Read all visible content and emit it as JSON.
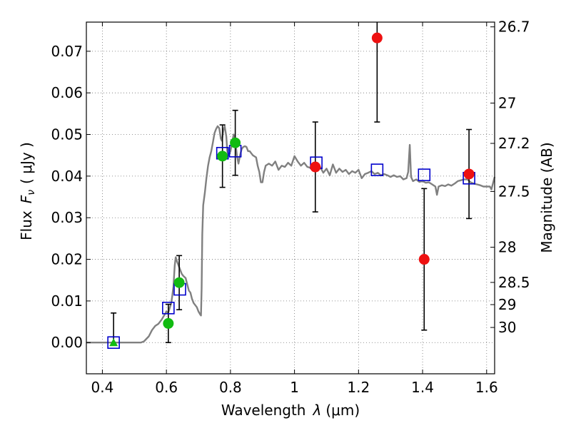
{
  "chart_data": {
    "type": "scatter",
    "title": "",
    "xlabel_main": "Wavelength",
    "xlabel_symbol": "λ",
    "xlabel_unit": "(μm)",
    "ylabel_main": "Flux",
    "ylabel_symbol": "F",
    "ylabel_subscript": "ν",
    "ylabel_unit": "( μJy )",
    "y2label": "Magnitude (AB)",
    "xlim": [
      0.35,
      1.625
    ],
    "ylim": [
      -0.0075,
      0.077
    ],
    "grid": true,
    "x_ticks": [
      0.4,
      0.6,
      0.8,
      1.0,
      1.2,
      1.4,
      1.6
    ],
    "x_tick_labels": [
      "0.4",
      "0.6",
      "0.8",
      "1",
      "1.2",
      "1.4",
      "1.6"
    ],
    "y_ticks": [
      0.0,
      0.01,
      0.02,
      0.03,
      0.04,
      0.05,
      0.06,
      0.07
    ],
    "y_tick_labels": [
      "0.00",
      "0.01",
      "0.02",
      "0.03",
      "0.04",
      "0.05",
      "0.06",
      "0.07"
    ],
    "mag_ticks": [
      26.7,
      27,
      27.2,
      27.5,
      28,
      28.5,
      29,
      30
    ],
    "mag_tick_labels": [
      "26.7",
      "27",
      "27.2",
      "27.5",
      "28",
      "28.5",
      "29",
      "30"
    ],
    "colors": {
      "model": "#808080",
      "red_points": "#ee1111",
      "green_points": "#11bb11",
      "model_boxes": "#0000cc",
      "errorbar": "#000000"
    },
    "series": [
      {
        "kind": "line",
        "points": [
          [
            0.35,
            0.0
          ],
          [
            0.52,
            0.0
          ],
          [
            0.53,
            0.0003
          ],
          [
            0.545,
            0.0015
          ],
          [
            0.555,
            0.003
          ],
          [
            0.565,
            0.004
          ],
          [
            0.575,
            0.0045
          ],
          [
            0.585,
            0.0055
          ],
          [
            0.595,
            0.0068
          ],
          [
            0.6,
            0.0075
          ],
          [
            0.605,
            0.007
          ],
          [
            0.61,
            0.0082
          ],
          [
            0.615,
            0.0095
          ],
          [
            0.618,
            0.011
          ],
          [
            0.622,
            0.0135
          ],
          [
            0.626,
            0.0185
          ],
          [
            0.629,
            0.0205
          ],
          [
            0.633,
            0.0195
          ],
          [
            0.638,
            0.0185
          ],
          [
            0.643,
            0.0175
          ],
          [
            0.648,
            0.0165
          ],
          [
            0.653,
            0.016
          ],
          [
            0.66,
            0.0155
          ],
          [
            0.665,
            0.014
          ],
          [
            0.67,
            0.0125
          ],
          [
            0.675,
            0.012
          ],
          [
            0.68,
            0.0105
          ],
          [
            0.685,
            0.0095
          ],
          [
            0.69,
            0.009
          ],
          [
            0.695,
            0.0085
          ],
          [
            0.7,
            0.0075
          ],
          [
            0.705,
            0.0068
          ],
          [
            0.708,
            0.0065
          ],
          [
            0.71,
            0.013
          ],
          [
            0.712,
            0.026
          ],
          [
            0.715,
            0.033
          ],
          [
            0.72,
            0.036
          ],
          [
            0.725,
            0.0395
          ],
          [
            0.73,
            0.0425
          ],
          [
            0.735,
            0.0445
          ],
          [
            0.74,
            0.046
          ],
          [
            0.745,
            0.048
          ],
          [
            0.75,
            0.0503
          ],
          [
            0.755,
            0.0513
          ],
          [
            0.76,
            0.052
          ],
          [
            0.765,
            0.0515
          ],
          [
            0.77,
            0.049
          ],
          [
            0.773,
            0.0485
          ],
          [
            0.778,
            0.051
          ],
          [
            0.782,
            0.052
          ],
          [
            0.787,
            0.0495
          ],
          [
            0.79,
            0.046
          ],
          [
            0.795,
            0.045
          ],
          [
            0.8,
            0.046
          ],
          [
            0.805,
            0.048
          ],
          [
            0.81,
            0.05
          ],
          [
            0.815,
            0.0485
          ],
          [
            0.82,
            0.045
          ],
          [
            0.825,
            0.043
          ],
          [
            0.83,
            0.045
          ],
          [
            0.835,
            0.0465
          ],
          [
            0.84,
            0.047
          ],
          [
            0.845,
            0.0472
          ],
          [
            0.85,
            0.047
          ],
          [
            0.855,
            0.046
          ],
          [
            0.86,
            0.046
          ],
          [
            0.865,
            0.0455
          ],
          [
            0.87,
            0.045
          ],
          [
            0.88,
            0.0445
          ],
          [
            0.885,
            0.0425
          ],
          [
            0.89,
            0.041
          ],
          [
            0.895,
            0.0385
          ],
          [
            0.9,
            0.0385
          ],
          [
            0.905,
            0.041
          ],
          [
            0.91,
            0.0425
          ],
          [
            0.92,
            0.043
          ],
          [
            0.93,
            0.0425
          ],
          [
            0.94,
            0.0435
          ],
          [
            0.95,
            0.0415
          ],
          [
            0.96,
            0.0425
          ],
          [
            0.97,
            0.0422
          ],
          [
            0.98,
            0.0432
          ],
          [
            0.99,
            0.0425
          ],
          [
            1.0,
            0.0448
          ],
          [
            1.01,
            0.0435
          ],
          [
            1.02,
            0.0425
          ],
          [
            1.03,
            0.0432
          ],
          [
            1.04,
            0.0422
          ],
          [
            1.05,
            0.042
          ],
          [
            1.06,
            0.0425
          ],
          [
            1.07,
            0.0418
          ],
          [
            1.08,
            0.0422
          ],
          [
            1.09,
            0.0408
          ],
          [
            1.1,
            0.0418
          ],
          [
            1.11,
            0.0402
          ],
          [
            1.12,
            0.0428
          ],
          [
            1.13,
            0.0408
          ],
          [
            1.14,
            0.0418
          ],
          [
            1.15,
            0.041
          ],
          [
            1.16,
            0.0415
          ],
          [
            1.17,
            0.0405
          ],
          [
            1.18,
            0.0412
          ],
          [
            1.19,
            0.0408
          ],
          [
            1.2,
            0.0415
          ],
          [
            1.21,
            0.0395
          ],
          [
            1.22,
            0.0405
          ],
          [
            1.23,
            0.0408
          ],
          [
            1.24,
            0.0412
          ],
          [
            1.25,
            0.0405
          ],
          [
            1.26,
            0.0408
          ],
          [
            1.27,
            0.0402
          ],
          [
            1.28,
            0.0405
          ],
          [
            1.29,
            0.0402
          ],
          [
            1.3,
            0.0398
          ],
          [
            1.31,
            0.0402
          ],
          [
            1.32,
            0.0398
          ],
          [
            1.33,
            0.04
          ],
          [
            1.34,
            0.0392
          ],
          [
            1.35,
            0.0395
          ],
          [
            1.355,
            0.041
          ],
          [
            1.36,
            0.0475
          ],
          [
            1.364,
            0.0398
          ],
          [
            1.37,
            0.0388
          ],
          [
            1.38,
            0.0392
          ],
          [
            1.39,
            0.0386
          ],
          [
            1.4,
            0.0388
          ],
          [
            1.41,
            0.0384
          ],
          [
            1.42,
            0.0385
          ],
          [
            1.43,
            0.038
          ],
          [
            1.44,
            0.0375
          ],
          [
            1.445,
            0.0355
          ],
          [
            1.45,
            0.0375
          ],
          [
            1.46,
            0.0378
          ],
          [
            1.47,
            0.0376
          ],
          [
            1.48,
            0.038
          ],
          [
            1.49,
            0.0377
          ],
          [
            1.5,
            0.0382
          ],
          [
            1.51,
            0.0388
          ],
          [
            1.52,
            0.039
          ],
          [
            1.53,
            0.0392
          ],
          [
            1.54,
            0.0392
          ],
          [
            1.55,
            0.0385
          ],
          [
            1.56,
            0.0382
          ],
          [
            1.57,
            0.038
          ],
          [
            1.58,
            0.0378
          ],
          [
            1.59,
            0.0375
          ],
          [
            1.6,
            0.0375
          ],
          [
            1.61,
            0.0375
          ],
          [
            1.615,
            0.0368
          ],
          [
            1.625,
            0.0398
          ]
        ]
      },
      {
        "kind": "model_boxes",
        "points": [
          [
            0.435,
            0.0
          ],
          [
            0.606,
            0.0083
          ],
          [
            0.642,
            0.0128
          ],
          [
            0.775,
            0.0455
          ],
          [
            0.815,
            0.046
          ],
          [
            1.068,
            0.0432
          ],
          [
            1.258,
            0.0415
          ],
          [
            1.405,
            0.0403
          ],
          [
            1.545,
            0.0395
          ]
        ]
      },
      {
        "kind": "red_points",
        "points": [
          {
            "x": 1.065,
            "y": 0.0422,
            "err": 0.0108
          },
          {
            "x": 1.258,
            "y": 0.0732,
            "err": 0.0202
          },
          {
            "x": 1.405,
            "y": 0.02,
            "err": 0.017
          },
          {
            "x": 1.545,
            "y": 0.0405,
            "err": 0.0107
          }
        ]
      },
      {
        "kind": "green_points",
        "points": [
          {
            "x": 0.606,
            "y": 0.0046,
            "err": 0.0046
          },
          {
            "x": 0.64,
            "y": 0.0144,
            "err": 0.0065
          },
          {
            "x": 0.775,
            "y": 0.0448,
            "err": 0.0075
          },
          {
            "x": 0.815,
            "y": 0.048,
            "err": 0.0078
          }
        ]
      },
      {
        "kind": "upper_limits",
        "points": [
          {
            "x": 0.435,
            "y": 0.0,
            "top": 0.0071
          }
        ]
      }
    ]
  }
}
